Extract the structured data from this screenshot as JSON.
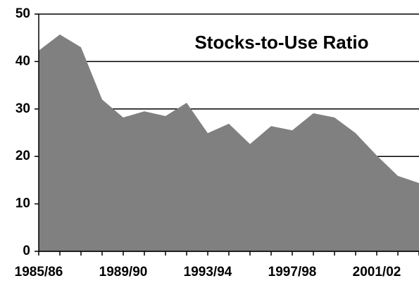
{
  "chart_data": {
    "type": "area",
    "title": "Stocks-to-Use Ratio",
    "categories": [
      "1985/86",
      null,
      null,
      null,
      "1989/90",
      null,
      null,
      null,
      "1993/94",
      null,
      null,
      null,
      "1997/98",
      null,
      null,
      null,
      "2001/02",
      null,
      null
    ],
    "values": [
      42.3,
      45.7,
      43.0,
      32.0,
      28.2,
      29.5,
      28.5,
      31.3,
      24.9,
      26.9,
      22.6,
      26.4,
      25.5,
      29.1,
      28.2,
      24.9,
      20.2,
      15.9,
      14.4
    ],
    "color": "#808080",
    "ylim": [
      0,
      50
    ],
    "yticks": [
      0,
      10,
      20,
      30,
      40,
      50
    ],
    "grid": true
  }
}
